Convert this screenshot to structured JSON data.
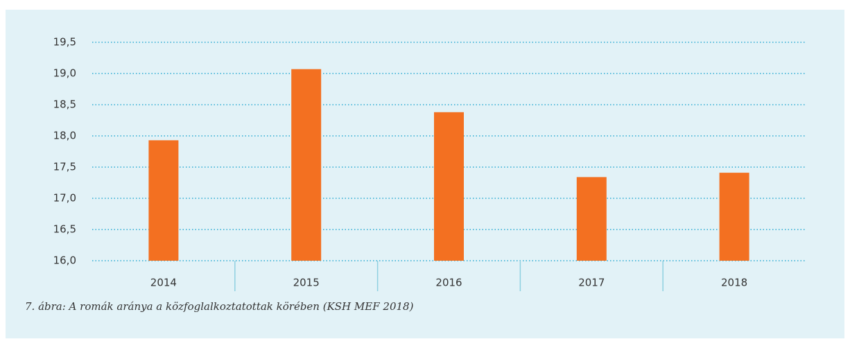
{
  "chart_data": {
    "type": "bar",
    "categories": [
      "2014",
      "2015",
      "2016",
      "2017",
      "2018"
    ],
    "values": [
      17.93,
      19.07,
      18.38,
      17.34,
      17.41
    ],
    "color": "#f37021",
    "ylim": [
      16.0,
      19.5
    ],
    "yticks": [
      {
        "value": 16.0,
        "label": "16,0"
      },
      {
        "value": 16.5,
        "label": "16,5"
      },
      {
        "value": 17.0,
        "label": "17,0"
      },
      {
        "value": 17.5,
        "label": "17,5"
      },
      {
        "value": 18.0,
        "label": "18,0"
      },
      {
        "value": 18.5,
        "label": "18,5"
      },
      {
        "value": 19.0,
        "label": "19,0"
      },
      {
        "value": 19.5,
        "label": "19,5"
      }
    ],
    "grid": true,
    "caption": "7. ábra: A romák aránya a közfoglalkoztatottak körében (KSH MEF 2018)"
  }
}
